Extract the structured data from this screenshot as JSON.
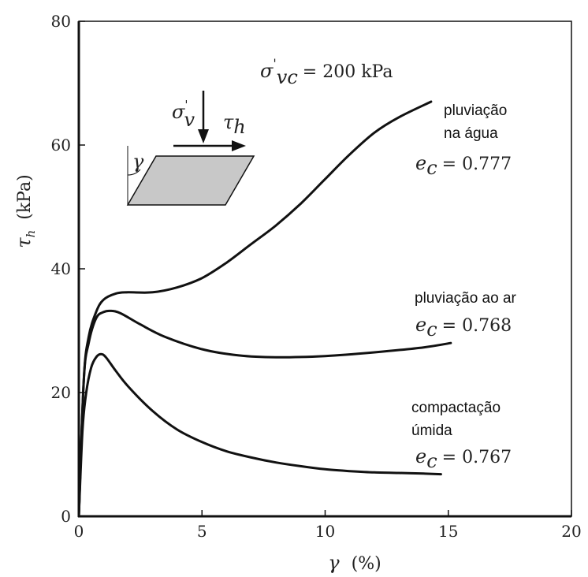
{
  "chart_data": {
    "type": "line",
    "title": "",
    "xlabel": "γ",
    "xlabel_unit": "(%)",
    "ylabel": "τ",
    "ylabel_sub": "h",
    "ylabel_unit": "(kPa)",
    "xlim": [
      0,
      20
    ],
    "ylim": [
      0,
      80
    ],
    "xticks": [
      "0",
      "5",
      "10",
      "15",
      "20"
    ],
    "yticks": [
      "0",
      "20",
      "40",
      "60",
      "80"
    ],
    "grid": false,
    "annotation": {
      "sigma": "σ",
      "sigma_sub": "vc",
      "sigma_prime": "'",
      "value": "= 200 kPa"
    },
    "diagram": {
      "sigma": "σ",
      "sigma_sub": "v",
      "sigma_prime": "'",
      "tau": "τ",
      "tau_sub": "h",
      "gamma": "γ",
      "fill_color": "#c8c8c8"
    },
    "series": [
      {
        "name": "pluviação\nna água",
        "label_lines": [
          "pluviação",
          "na água"
        ],
        "ec_symbol": "e",
        "ec_sub": "c",
        "ec_value": "= 0.777",
        "x": [
          0,
          0.2,
          0.4,
          0.7,
          1.0,
          1.5,
          2.0,
          3.0,
          4.0,
          5.0,
          6.0,
          7.0,
          8.0,
          9.0,
          10.0,
          11.0,
          12.0,
          13.0,
          14.3
        ],
        "y": [
          0,
          22,
          29,
          33,
          35,
          36,
          36.2,
          36.2,
          37,
          38.5,
          41,
          44,
          47,
          50.5,
          54.5,
          58.5,
          62,
          64.5,
          67
        ]
      },
      {
        "name": "pluviação ao ar",
        "label_lines": [
          "pluviação ao ar"
        ],
        "ec_symbol": "e",
        "ec_sub": "c",
        "ec_value": "= 0.768",
        "x": [
          0,
          0.2,
          0.4,
          0.7,
          1.0,
          1.3,
          1.7,
          2.5,
          3.5,
          5.0,
          6.5,
          8.0,
          10.0,
          12.0,
          14.0,
          15.1
        ],
        "y": [
          0,
          22,
          28,
          32,
          33,
          33.2,
          32.8,
          31,
          29,
          27,
          26,
          25.7,
          25.9,
          26.5,
          27.3,
          28
        ]
      },
      {
        "name": "compactação\númida",
        "label_lines": [
          "compactação",
          "úmida"
        ],
        "ec_symbol": "e",
        "ec_sub": "c",
        "ec_value": "= 0.767",
        "x": [
          0,
          0.15,
          0.3,
          0.5,
          0.7,
          0.9,
          1.1,
          1.5,
          2.0,
          3.0,
          4.0,
          5.0,
          6.0,
          7.0,
          8.0,
          9.0,
          10.0,
          11.0,
          12.0,
          13.0,
          14.0,
          14.7
        ],
        "y": [
          0,
          14,
          20,
          24,
          25.7,
          26.2,
          25.7,
          23.5,
          21,
          17,
          14,
          12,
          10.5,
          9.5,
          8.7,
          8.1,
          7.6,
          7.3,
          7.1,
          7.0,
          6.9,
          6.8
        ]
      }
    ]
  }
}
